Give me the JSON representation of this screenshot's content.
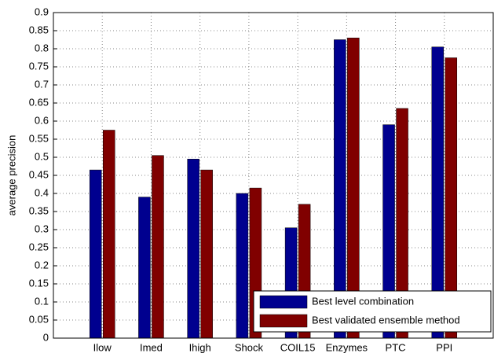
{
  "chart_data": {
    "type": "bar",
    "y_label": "average precision",
    "categories": [
      "Ilow",
      "Imed",
      "Ihigh",
      "Shock",
      "COIL15",
      "Enzymes",
      "PTC",
      "PPI"
    ],
    "series": [
      {
        "name": "Best level combination",
        "color": "#00008f",
        "values": [
          0.465,
          0.39,
          0.495,
          0.4,
          0.305,
          0.825,
          0.59,
          0.805
        ]
      },
      {
        "name": "Best validated ensemble method",
        "color": "#800000",
        "values": [
          0.575,
          0.505,
          0.465,
          0.415,
          0.37,
          0.83,
          0.635,
          0.775
        ]
      }
    ],
    "ylim": [
      0,
      0.9
    ],
    "yticks": [
      0,
      0.05,
      0.1,
      0.15,
      0.2,
      0.25,
      0.3,
      0.35,
      0.4,
      0.45,
      0.5,
      0.55,
      0.6,
      0.65,
      0.7,
      0.75,
      0.8,
      0.85,
      0.9
    ],
    "grid": true,
    "legend": "lower right"
  }
}
